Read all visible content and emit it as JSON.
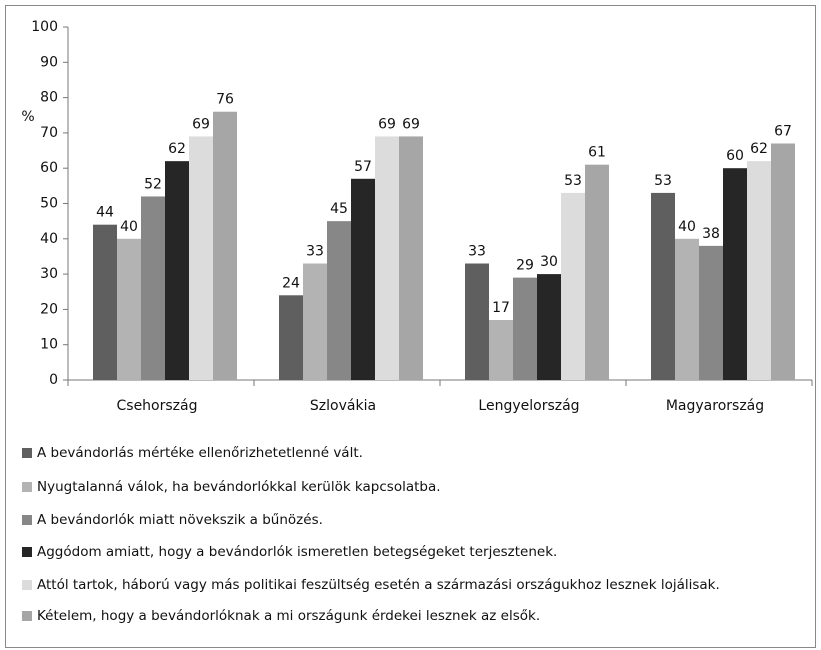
{
  "chart_data": {
    "type": "bar",
    "y_label": "%",
    "categories": [
      "Csehország",
      "Szlovákia",
      "Lengyelország",
      "Magyarország"
    ],
    "series": [
      {
        "name": "A bevándorlás mértéke ellenőrizhetetlenné vált.",
        "color": "#5f5f5f",
        "values": [
          44,
          24,
          33,
          53
        ]
      },
      {
        "name": "Nyugtalanná válok, ha bevándorlókkal kerülök kapcsolatba.",
        "color": "#b3b3b3",
        "values": [
          40,
          33,
          17,
          40
        ]
      },
      {
        "name": "A bevándorlók miatt növekszik a bűnözés.",
        "color": "#878787",
        "values": [
          52,
          45,
          29,
          38
        ]
      },
      {
        "name": "Aggódom amiatt, hogy a bevándorlók ismeretlen betegségeket terjesztenek.",
        "color": "#262626",
        "values": [
          62,
          57,
          30,
          60
        ]
      },
      {
        "name": "Attól tartok, háború vagy más politikai feszültség esetén a származási országukhoz lesznek lojálisak.",
        "color": "#dcdcdc",
        "values": [
          69,
          69,
          53,
          62
        ]
      },
      {
        "name": "Kételem, hogy a bevándorlóknak a mi országunk érdekei lesznek az elsők.",
        "color": "#a6a6a6",
        "values": [
          76,
          69,
          61,
          67
        ]
      }
    ],
    "ylim": [
      0,
      100
    ],
    "yticks": [
      0,
      10,
      20,
      30,
      40,
      50,
      60,
      70,
      80,
      90,
      100
    ],
    "grid": false,
    "legend": "bottom"
  }
}
